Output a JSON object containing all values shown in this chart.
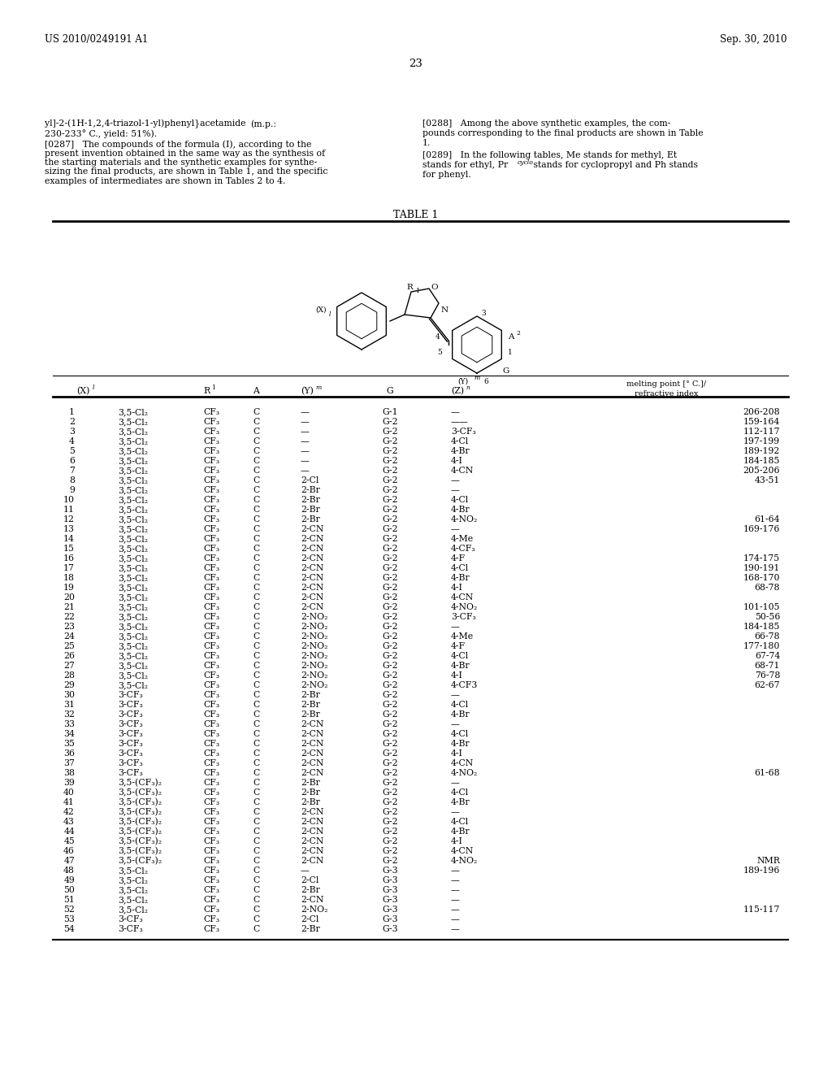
{
  "page_number": "23",
  "patent_number": "US 2010/0249191 A1",
  "patent_date": "Sep. 30, 2010",
  "table_title": "TABLE 1",
  "table_data": [
    [
      "1",
      "3,5-Cl₂",
      "CF₃",
      "C",
      "—",
      "G-1",
      "—",
      "206-208"
    ],
    [
      "2",
      "3,5-Cl₂",
      "CF₃",
      "C",
      "—",
      "G-2",
      "——",
      "159-164"
    ],
    [
      "3",
      "3,5-Cl₂",
      "CF₃",
      "C",
      "—",
      "G-2",
      "3-CF₃",
      "112-117"
    ],
    [
      "4",
      "3,5-Cl₂",
      "CF₃",
      "C",
      "—",
      "G-2",
      "4-Cl",
      "197-199"
    ],
    [
      "5",
      "3,5-Cl₂",
      "CF₃",
      "C",
      "—",
      "G-2",
      "4-Br",
      "189-192"
    ],
    [
      "6",
      "3,5-Cl₂",
      "CF₃",
      "C",
      "—",
      "G-2",
      "4-I",
      "184-185"
    ],
    [
      "7",
      "3,5-Cl₂",
      "CF₃",
      "C",
      "—",
      "G-2",
      "4-CN",
      "205-206"
    ],
    [
      "8",
      "3,5-Cl₂",
      "CF₃",
      "C",
      "2-Cl",
      "G-2",
      "—",
      "43-51"
    ],
    [
      "9",
      "3,5-Cl₂",
      "CF₃",
      "C",
      "2-Br",
      "G-2",
      "—",
      ""
    ],
    [
      "10",
      "3,5-Cl₂",
      "CF₃",
      "C",
      "2-Br",
      "G-2",
      "4-Cl",
      ""
    ],
    [
      "11",
      "3,5-Cl₂",
      "CF₃",
      "C",
      "2-Br",
      "G-2",
      "4-Br",
      ""
    ],
    [
      "12",
      "3,5-Cl₂",
      "CF₃",
      "C",
      "2-Br",
      "G-2",
      "4-NO₂",
      "61-64"
    ],
    [
      "13",
      "3,5-Cl₂",
      "CF₃",
      "C",
      "2-CN",
      "G-2",
      "—",
      "169-176"
    ],
    [
      "14",
      "3,5-Cl₂",
      "CF₃",
      "C",
      "2-CN",
      "G-2",
      "4-Me",
      ""
    ],
    [
      "15",
      "3,5-Cl₂",
      "CF₃",
      "C",
      "2-CN",
      "G-2",
      "4-CF₃",
      ""
    ],
    [
      "16",
      "3,5-Cl₂",
      "CF₃",
      "C",
      "2-CN",
      "G-2",
      "4-F",
      "174-175"
    ],
    [
      "17",
      "3,5-Cl₂",
      "CF₃",
      "C",
      "2-CN",
      "G-2",
      "4-Cl",
      "190-191"
    ],
    [
      "18",
      "3,5-Cl₂",
      "CF₃",
      "C",
      "2-CN",
      "G-2",
      "4-Br",
      "168-170"
    ],
    [
      "19",
      "3,5-Cl₂",
      "CF₃",
      "C",
      "2-CN",
      "G-2",
      "4-I",
      "68-78"
    ],
    [
      "20",
      "3,5-Cl₂",
      "CF₃",
      "C",
      "2-CN",
      "G-2",
      "4-CN",
      ""
    ],
    [
      "21",
      "3,5-Cl₂",
      "CF₃",
      "C",
      "2-CN",
      "G-2",
      "4-NO₂",
      "101-105"
    ],
    [
      "22",
      "3,5-Cl₂",
      "CF₃",
      "C",
      "2-NO₂",
      "G-2",
      "3-CF₃",
      "50-56"
    ],
    [
      "23",
      "3,5-Cl₂",
      "CF₃",
      "C",
      "2-NO₂",
      "G-2",
      "—",
      "184-185"
    ],
    [
      "24",
      "3,5-Cl₂",
      "CF₃",
      "C",
      "2-NO₂",
      "G-2",
      "4-Me",
      "66-78"
    ],
    [
      "25",
      "3,5-Cl₂",
      "CF₃",
      "C",
      "2-NO₂",
      "G-2",
      "4-F",
      "177-180"
    ],
    [
      "26",
      "3,5-Cl₂",
      "CF₃",
      "C",
      "2-NO₂",
      "G-2",
      "4-Cl",
      "67-74"
    ],
    [
      "27",
      "3,5-Cl₂",
      "CF₃",
      "C",
      "2-NO₂",
      "G-2",
      "4-Br",
      "68-71"
    ],
    [
      "28",
      "3,5-Cl₂",
      "CF₃",
      "C",
      "2-NO₂",
      "G-2",
      "4-I",
      "76-78"
    ],
    [
      "29",
      "3,5-Cl₂",
      "CF₃",
      "C",
      "2-NO₂",
      "G-2",
      "4-CF3",
      "62-67"
    ],
    [
      "30",
      "3-CF₃",
      "CF₃",
      "C",
      "2-Br",
      "G-2",
      "—",
      ""
    ],
    [
      "31",
      "3-CF₃",
      "CF₃",
      "C",
      "2-Br",
      "G-2",
      "4-Cl",
      ""
    ],
    [
      "32",
      "3-CF₃",
      "CF₃",
      "C",
      "2-Br",
      "G-2",
      "4-Br",
      ""
    ],
    [
      "33",
      "3-CF₃",
      "CF₃",
      "C",
      "2-CN",
      "G-2",
      "—",
      ""
    ],
    [
      "34",
      "3-CF₃",
      "CF₃",
      "C",
      "2-CN",
      "G-2",
      "4-Cl",
      ""
    ],
    [
      "35",
      "3-CF₃",
      "CF₃",
      "C",
      "2-CN",
      "G-2",
      "4-Br",
      ""
    ],
    [
      "36",
      "3-CF₃",
      "CF₃",
      "C",
      "2-CN",
      "G-2",
      "4-I",
      ""
    ],
    [
      "37",
      "3-CF₃",
      "CF₃",
      "C",
      "2-CN",
      "G-2",
      "4-CN",
      ""
    ],
    [
      "38",
      "3-CF₃",
      "CF₃",
      "C",
      "2-CN",
      "G-2",
      "4-NO₂",
      "61-68"
    ],
    [
      "39",
      "3,5-(CF₃)₂",
      "CF₃",
      "C",
      "2-Br",
      "G-2",
      "—",
      ""
    ],
    [
      "40",
      "3,5-(CF₃)₂",
      "CF₃",
      "C",
      "2-Br",
      "G-2",
      "4-Cl",
      ""
    ],
    [
      "41",
      "3,5-(CF₃)₂",
      "CF₃",
      "C",
      "2-Br",
      "G-2",
      "4-Br",
      ""
    ],
    [
      "42",
      "3,5-(CF₃)₂",
      "CF₃",
      "C",
      "2-CN",
      "G-2",
      "—",
      ""
    ],
    [
      "43",
      "3,5-(CF₃)₂",
      "CF₃",
      "C",
      "2-CN",
      "G-2",
      "4-Cl",
      ""
    ],
    [
      "44",
      "3,5-(CF₃)₂",
      "CF₃",
      "C",
      "2-CN",
      "G-2",
      "4-Br",
      ""
    ],
    [
      "45",
      "3,5-(CF₃)₂",
      "CF₃",
      "C",
      "2-CN",
      "G-2",
      "4-I",
      ""
    ],
    [
      "46",
      "3,5-(CF₃)₂",
      "CF₃",
      "C",
      "2-CN",
      "G-2",
      "4-CN",
      ""
    ],
    [
      "47",
      "3,5-(CF₃)₂",
      "CF₃",
      "C",
      "2-CN",
      "G-2",
      "4-NO₂",
      "NMR|189-196"
    ],
    [
      "48",
      "3,5-Cl₂",
      "CF₃",
      "C",
      "—",
      "G-3",
      "—",
      ""
    ],
    [
      "49",
      "3,5-Cl₂",
      "CF₃",
      "C",
      "2-Cl",
      "G-3",
      "—",
      ""
    ],
    [
      "50",
      "3,5-Cl₂",
      "CF₃",
      "C",
      "2-Br",
      "G-3",
      "—",
      ""
    ],
    [
      "51",
      "3,5-Cl₂",
      "CF₃",
      "C",
      "2-CN",
      "G-3",
      "—",
      ""
    ],
    [
      "52",
      "3,5-Cl₂",
      "CF₃",
      "C",
      "2-NO₂",
      "G-3",
      "—",
      "115-117"
    ],
    [
      "53",
      "3-CF₃",
      "CF₃",
      "C",
      "2-Cl",
      "G-3",
      "—",
      ""
    ],
    [
      "54",
      "3-CF₃",
      "CF₃",
      "C",
      "2-Br",
      "G-3",
      "—",
      ""
    ]
  ]
}
